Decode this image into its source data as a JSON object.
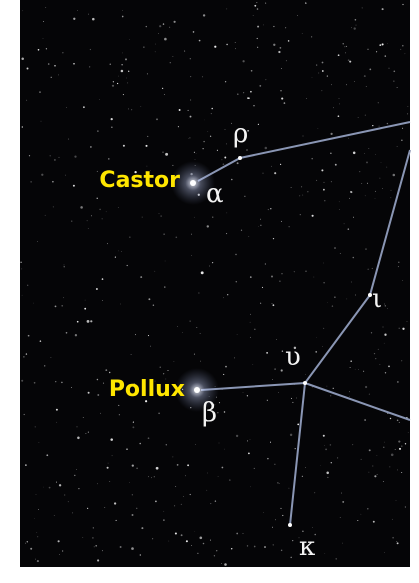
{
  "stars": [
    {
      "name": "Castor",
      "letter": "α"
    },
    {
      "letter": "ρ"
    },
    {
      "letter": "ι"
    },
    {
      "letter": "υ"
    },
    {
      "name": "Pollux",
      "letter": "β"
    },
    {
      "letter": "κ"
    }
  ]
}
